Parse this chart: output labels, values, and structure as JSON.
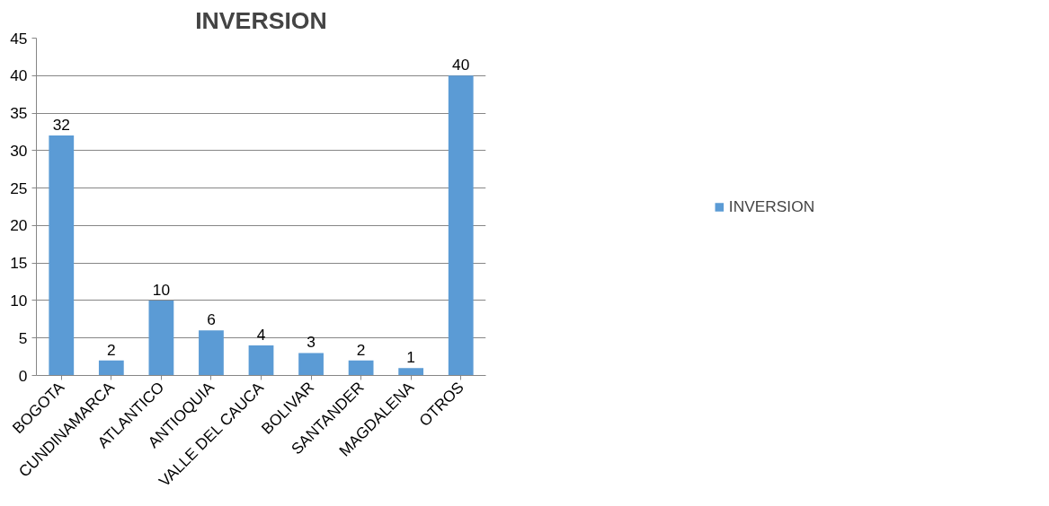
{
  "chart_data": {
    "type": "bar",
    "title": "INVERSION",
    "categories": [
      "BOGOTA",
      "CUNDINAMARCA",
      "ATLANTICO",
      "ANTIOQUIA",
      "VALLE DEL CAUCA",
      "BOLIVAR",
      "SANTANDER",
      "MAGDALENA",
      "OTROS"
    ],
    "series": [
      {
        "name": "INVERSION",
        "color": "#5b9bd5",
        "values": [
          32,
          2,
          10,
          6,
          4,
          3,
          2,
          1,
          40
        ]
      }
    ],
    "ylim": [
      0,
      45
    ],
    "yticks": [
      0,
      5,
      10,
      15,
      20,
      25,
      30,
      35,
      40,
      45
    ],
    "grid": "y",
    "legend": "right",
    "data_labels": true
  }
}
